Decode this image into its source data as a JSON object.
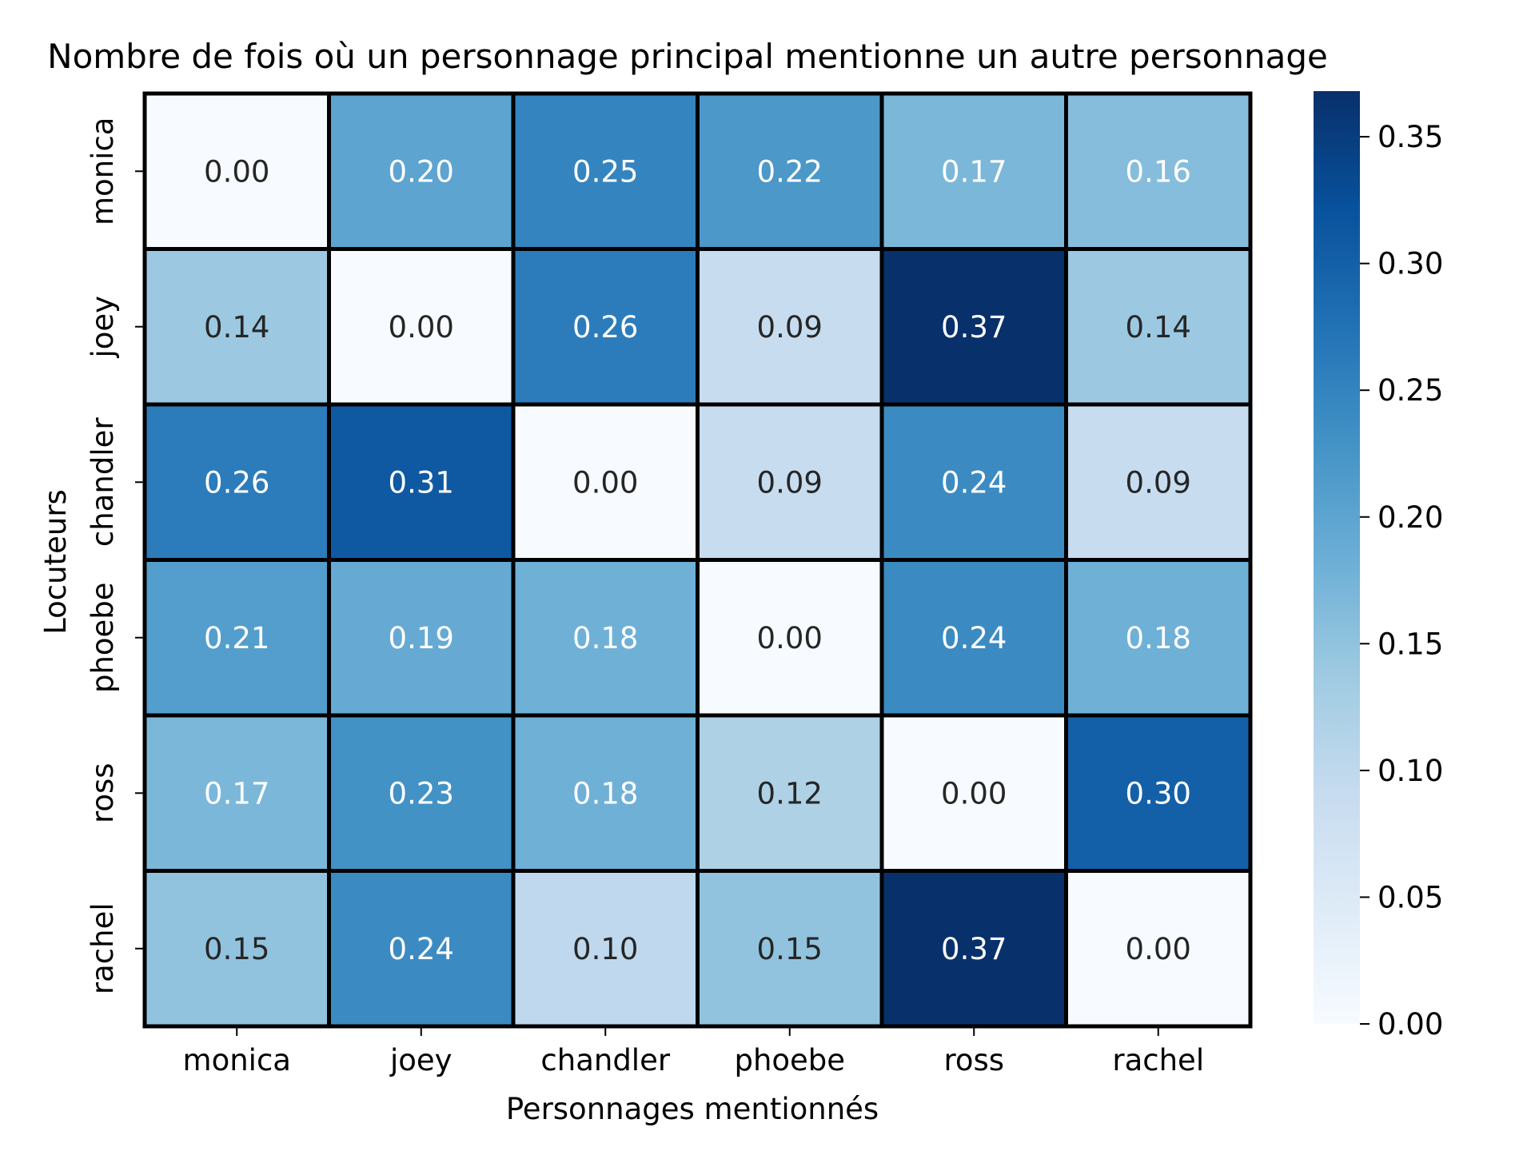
{
  "chart_data": {
    "type": "heatmap",
    "title": "Nombre de fois où un personnage principal mentionne un autre personnage",
    "xlabel": "Personnages mentionnés",
    "ylabel": "Locuteurs",
    "x_categories": [
      "monica",
      "joey",
      "chandler",
      "phoebe",
      "ross",
      "rachel"
    ],
    "y_categories": [
      "monica",
      "joey",
      "chandler",
      "phoebe",
      "ross",
      "rachel"
    ],
    "values": [
      [
        0.0,
        0.2,
        0.25,
        0.22,
        0.17,
        0.16
      ],
      [
        0.14,
        0.0,
        0.26,
        0.09,
        0.37,
        0.14
      ],
      [
        0.26,
        0.31,
        0.0,
        0.09,
        0.24,
        0.09
      ],
      [
        0.21,
        0.19,
        0.18,
        0.0,
        0.24,
        0.18
      ],
      [
        0.17,
        0.23,
        0.18,
        0.12,
        0.0,
        0.3
      ],
      [
        0.15,
        0.24,
        0.1,
        0.15,
        0.37,
        0.0
      ]
    ],
    "value_format": "2 decimals",
    "colormap": "Blues",
    "colorbar": {
      "range": [
        0,
        0.368
      ],
      "ticks": [
        "0.00",
        "0.05",
        "0.10",
        "0.15",
        "0.20",
        "0.25",
        "0.30",
        "0.35"
      ]
    },
    "cell_border_color": "#000000",
    "grid": false
  }
}
